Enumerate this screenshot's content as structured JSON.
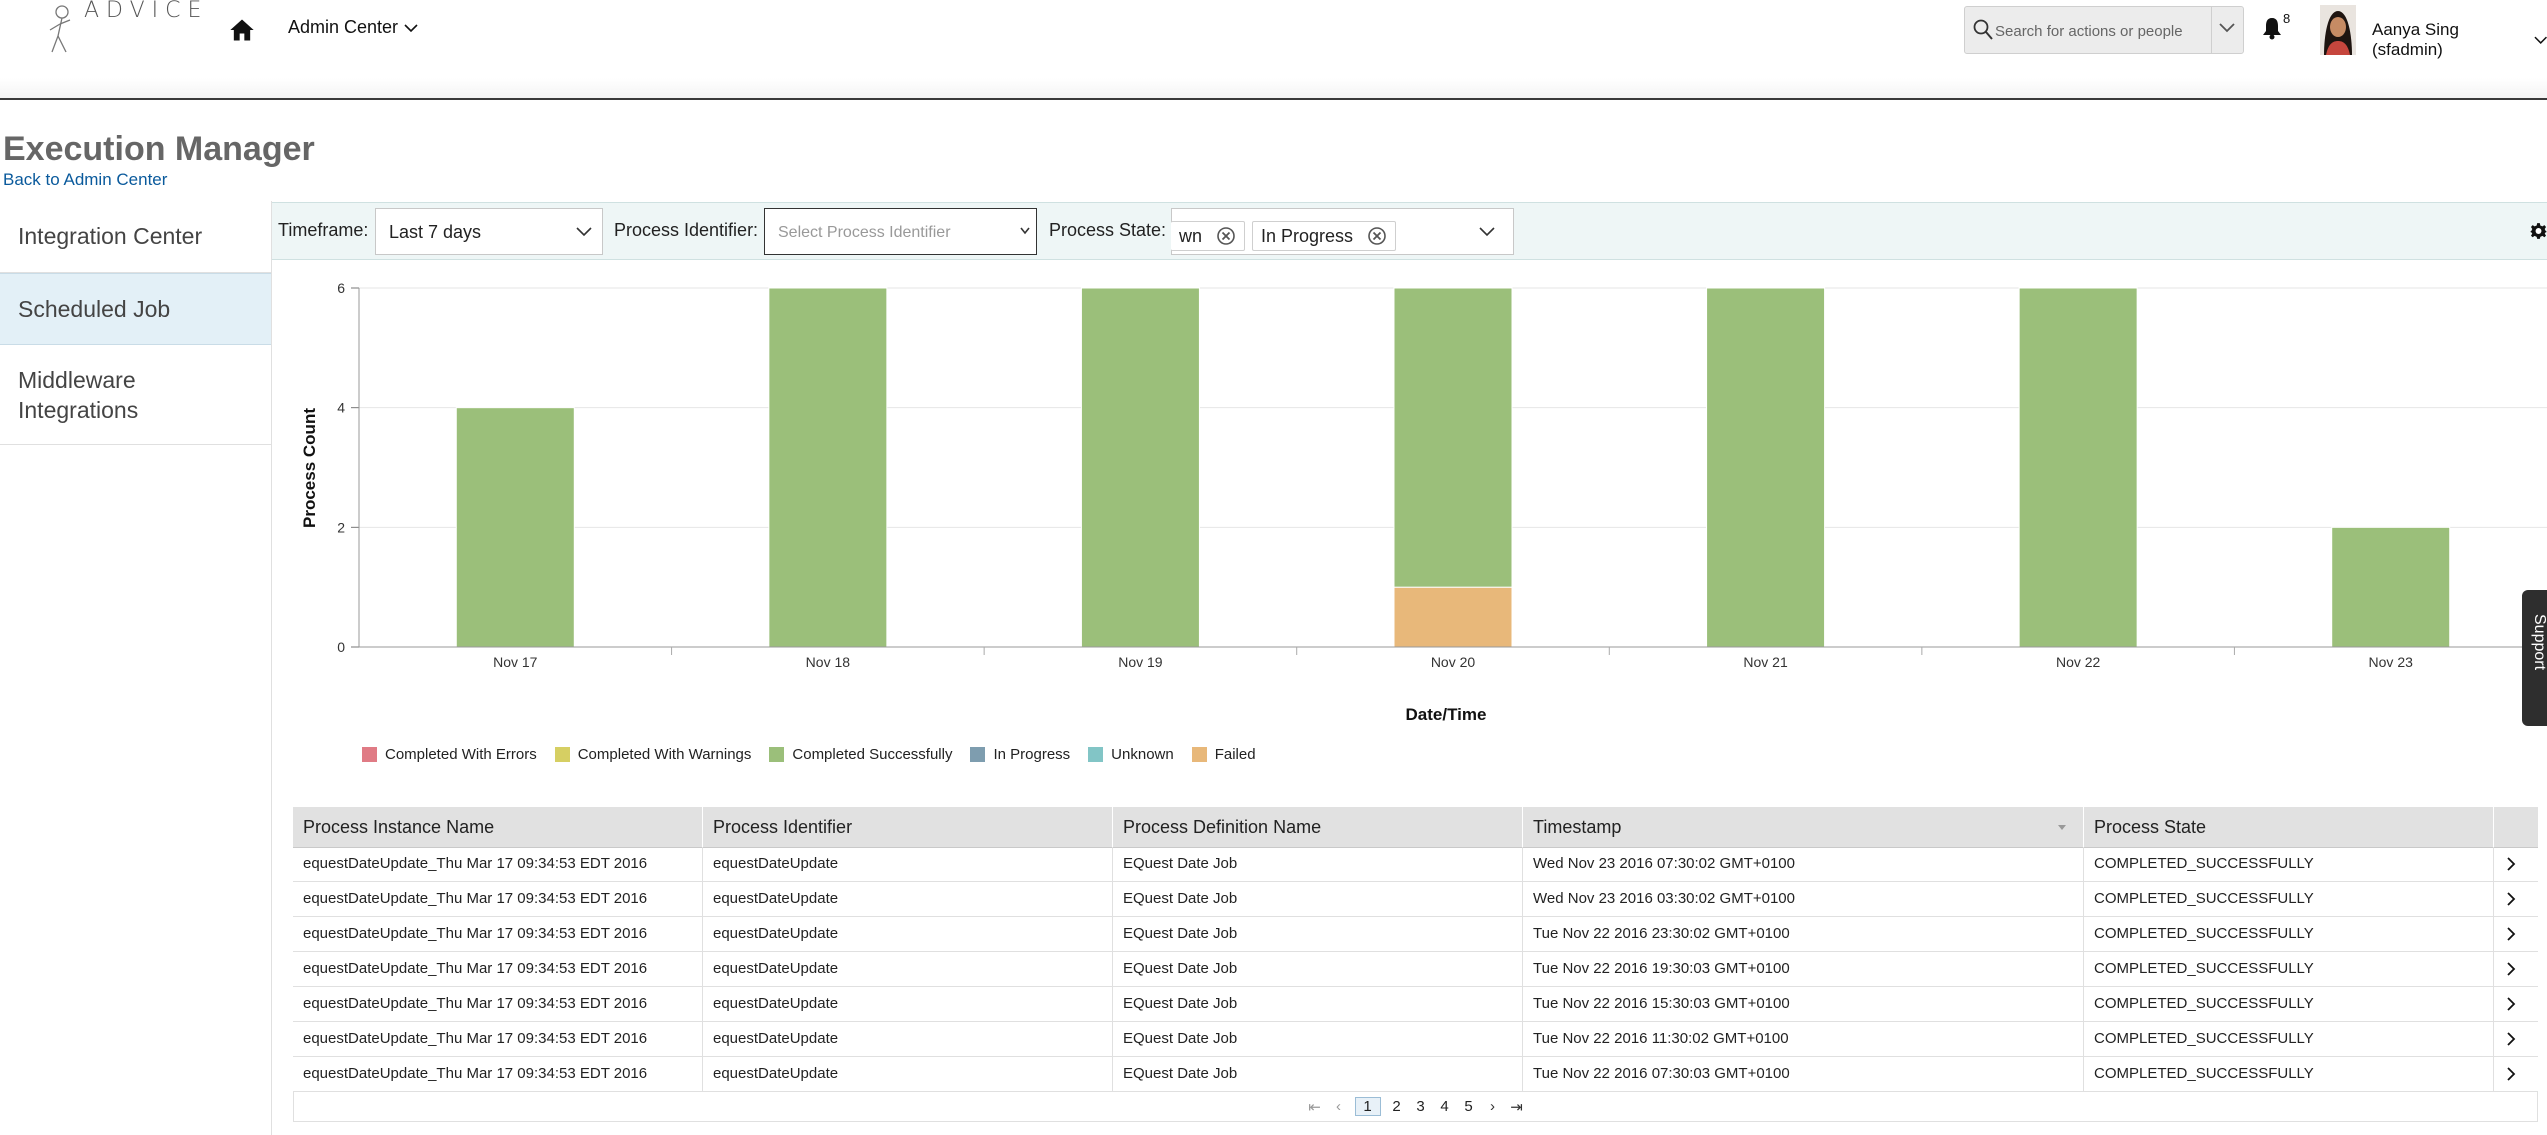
{
  "header": {
    "logo_text": "ADVICE",
    "menu_label": "Admin Center",
    "search_placeholder": "Search for actions or people",
    "notification_count": "8",
    "user_name": "Aanya Sing (sfadmin)"
  },
  "page": {
    "title": "Execution Manager",
    "back_link": "Back to Admin Center"
  },
  "sidebar": {
    "items": [
      {
        "label": "Integration Center"
      },
      {
        "label": "Scheduled Job"
      },
      {
        "label": "Middleware Integrations"
      }
    ],
    "active_index": 1
  },
  "filters": {
    "timeframe_label": "Timeframe:",
    "timeframe_value": "Last 7 days",
    "identifier_label": "Process Identifier:",
    "identifier_placeholder": "Select Process Identifier",
    "state_label": "Process State:",
    "state_chips": [
      "wn",
      "In Progress"
    ]
  },
  "chart_data": {
    "type": "bar",
    "stacked": true,
    "categories": [
      "Nov 17",
      "Nov 18",
      "Nov 19",
      "Nov 20",
      "Nov 21",
      "Nov 22",
      "Nov 23"
    ],
    "series": [
      {
        "name": "Completed With Errors",
        "color": "#e07b85",
        "values": [
          0,
          0,
          0,
          0,
          0,
          0,
          0
        ]
      },
      {
        "name": "Completed With Warnings",
        "color": "#d6cf63",
        "values": [
          0,
          0,
          0,
          0,
          0,
          0,
          0
        ]
      },
      {
        "name": "Completed Successfully",
        "color": "#9bbf7a",
        "values": [
          4,
          6,
          6,
          5,
          6,
          6,
          2
        ]
      },
      {
        "name": "In Progress",
        "color": "#7e9daf",
        "values": [
          0,
          0,
          0,
          0,
          0,
          0,
          0
        ]
      },
      {
        "name": "Unknown",
        "color": "#82c5c6",
        "values": [
          0,
          0,
          0,
          0,
          0,
          0,
          0
        ]
      },
      {
        "name": "Failed",
        "color": "#e8b87a",
        "values": [
          0,
          0,
          0,
          1,
          0,
          0,
          0
        ]
      }
    ],
    "stack_order": [
      "Failed",
      "Completed Successfully"
    ],
    "xlabel": "Date/Time",
    "ylabel": "Process Count",
    "ylim": [
      0,
      6
    ],
    "yticks": [
      0,
      2,
      4,
      6
    ],
    "grid": true,
    "legend_position": "bottom-left"
  },
  "support_label": "Support",
  "table": {
    "columns": [
      "Process Instance Name",
      "Process Identifier",
      "Process Definition Name",
      "Timestamp",
      "Process State"
    ],
    "rows": [
      [
        "equestDateUpdate_Thu Mar 17 09:34:53 EDT 2016",
        "equestDateUpdate",
        "EQuest Date Job",
        "Wed Nov 23 2016 07:30:02 GMT+0100",
        "COMPLETED_SUCCESSFULLY"
      ],
      [
        "equestDateUpdate_Thu Mar 17 09:34:53 EDT 2016",
        "equestDateUpdate",
        "EQuest Date Job",
        "Wed Nov 23 2016 03:30:02 GMT+0100",
        "COMPLETED_SUCCESSFULLY"
      ],
      [
        "equestDateUpdate_Thu Mar 17 09:34:53 EDT 2016",
        "equestDateUpdate",
        "EQuest Date Job",
        "Tue Nov 22 2016 23:30:02 GMT+0100",
        "COMPLETED_SUCCESSFULLY"
      ],
      [
        "equestDateUpdate_Thu Mar 17 09:34:53 EDT 2016",
        "equestDateUpdate",
        "EQuest Date Job",
        "Tue Nov 22 2016 19:30:03 GMT+0100",
        "COMPLETED_SUCCESSFULLY"
      ],
      [
        "equestDateUpdate_Thu Mar 17 09:34:53 EDT 2016",
        "equestDateUpdate",
        "EQuest Date Job",
        "Tue Nov 22 2016 15:30:03 GMT+0100",
        "COMPLETED_SUCCESSFULLY"
      ],
      [
        "equestDateUpdate_Thu Mar 17 09:34:53 EDT 2016",
        "equestDateUpdate",
        "EQuest Date Job",
        "Tue Nov 22 2016 11:30:02 GMT+0100",
        "COMPLETED_SUCCESSFULLY"
      ],
      [
        "equestDateUpdate_Thu Mar 17 09:34:53 EDT 2016",
        "equestDateUpdate",
        "EQuest Date Job",
        "Tue Nov 22 2016 07:30:03 GMT+0100",
        "COMPLETED_SUCCESSFULLY"
      ]
    ],
    "sorted_column": "Timestamp"
  },
  "pagination": {
    "pages": [
      "1",
      "2",
      "3",
      "4",
      "5"
    ],
    "current": "1"
  }
}
